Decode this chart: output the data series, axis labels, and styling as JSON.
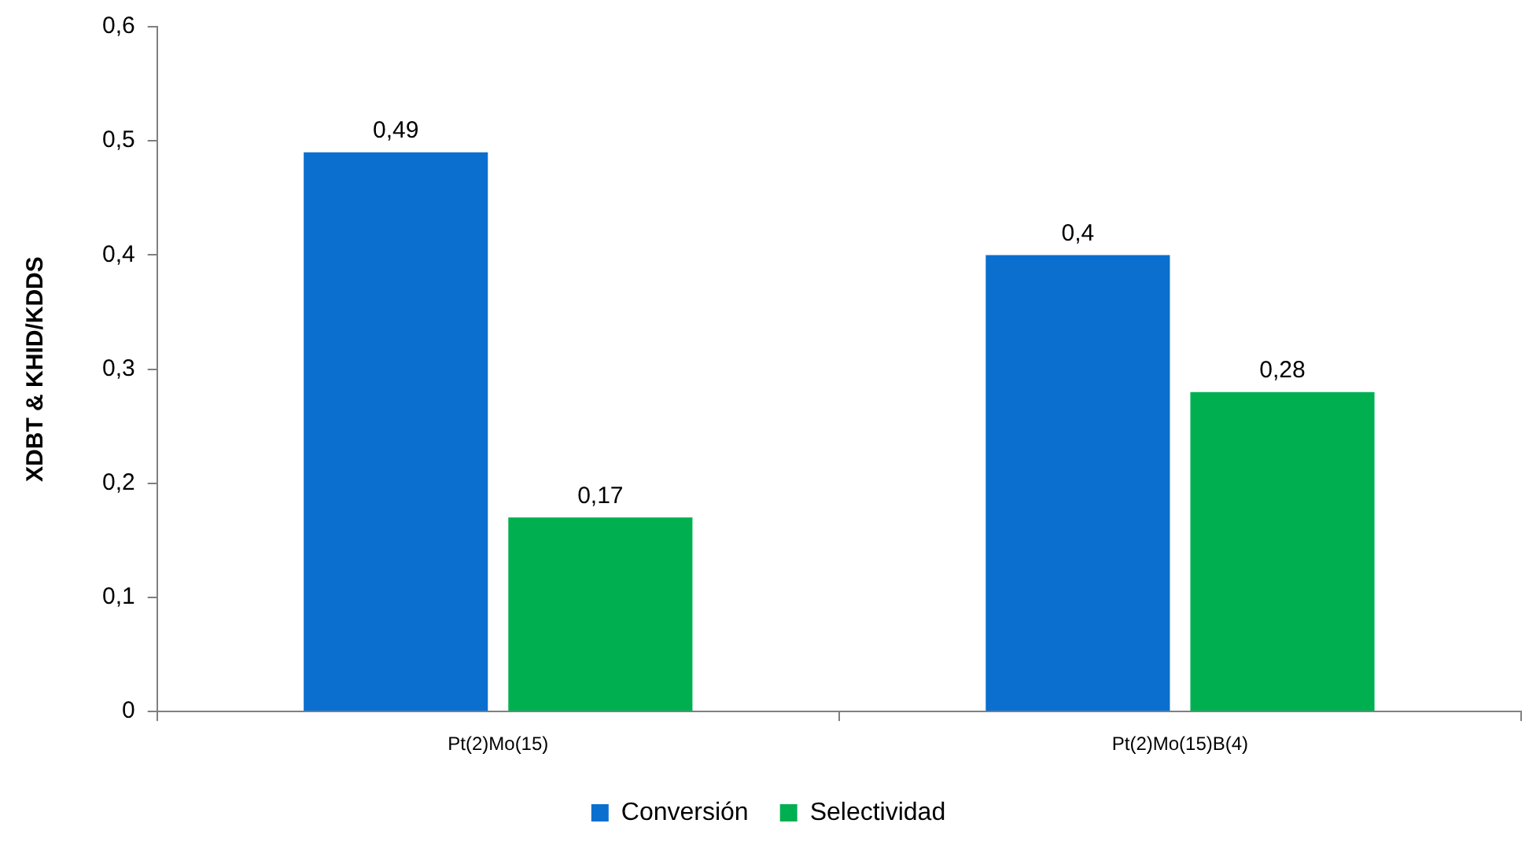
{
  "chart_data": {
    "type": "bar",
    "ylabel": "XDBT & KHID/KDDS",
    "categories": [
      "Pt(2)Mo(15)",
      "Pt(2)Mo(15)B(4)"
    ],
    "series": [
      {
        "name": "Conversión",
        "color": "#0b6fcf",
        "values": [
          0.49,
          0.4
        ],
        "value_labels": [
          "0,49",
          "0,4"
        ]
      },
      {
        "name": "Selectividad",
        "color": "#00b050",
        "values": [
          0.17,
          0.28
        ],
        "value_labels": [
          "0,17",
          "0,28"
        ]
      }
    ],
    "ylim": [
      0,
      0.6
    ],
    "yticks": [
      {
        "value": 0,
        "label": "0"
      },
      {
        "value": 0.1,
        "label": "0,1"
      },
      {
        "value": 0.2,
        "label": "0,2"
      },
      {
        "value": 0.3,
        "label": "0,3"
      },
      {
        "value": 0.4,
        "label": "0,4"
      },
      {
        "value": 0.5,
        "label": "0,5"
      },
      {
        "value": 0.6,
        "label": "0,6"
      }
    ],
    "grid": false,
    "legend": "bottom"
  }
}
